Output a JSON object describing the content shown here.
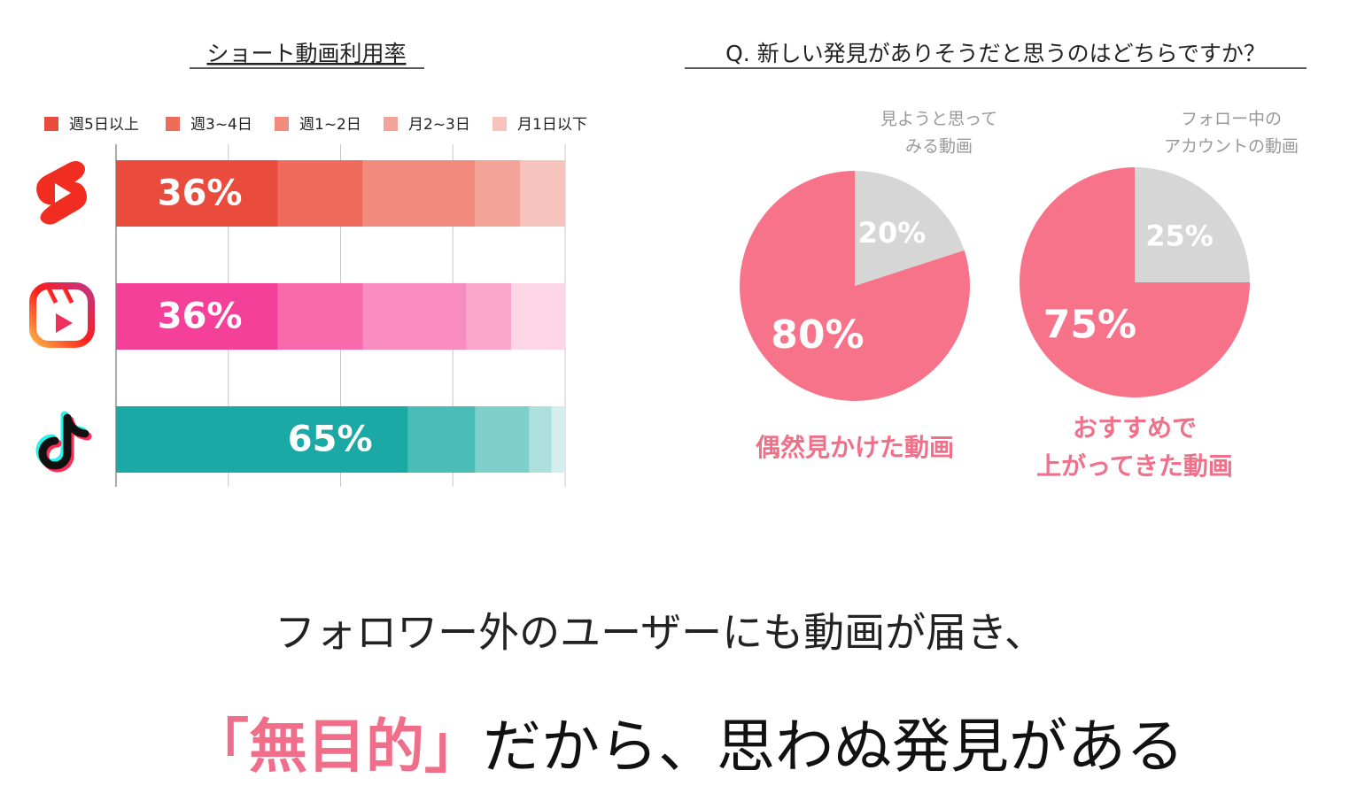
{
  "chart_data": [
    {
      "type": "stacked-hbar",
      "title": "ショート動画利用率",
      "categories": [
        null,
        null,
        null
      ],
      "xlim": [
        0,
        100
      ],
      "xticks": [
        0,
        25,
        50,
        75,
        100
      ],
      "grid": true,
      "legend": "top",
      "series": [
        {
          "name": "週5日以上",
          "color": "#e94b3c",
          "colors": [
            "#e94b3c",
            "#f5409a",
            "#1aa9a4"
          ],
          "values": [
            36,
            36,
            65
          ],
          "value_labels": [
            "36%",
            "36%",
            "65%"
          ]
        },
        {
          "name": "週3~4日",
          "color": "#ee6a5b",
          "colors": [
            "#ee6a5b",
            "#f86aa9",
            "#4bbdb8"
          ],
          "values": [
            19,
            19,
            15
          ]
        },
        {
          "name": "週1~2日",
          "color": "#f28a7d",
          "colors": [
            "#f28a7d",
            "#f98dbf",
            "#7fd0cd"
          ],
          "values": [
            25,
            23,
            12
          ]
        },
        {
          "name": "月2~3日",
          "color": "#f4a399",
          "colors": [
            "#f4a399",
            "#fba8cc",
            "#addfdd"
          ],
          "values": [
            10,
            10,
            5
          ]
        },
        {
          "name": "月1日以下",
          "color": "#f7c4bd",
          "colors": [
            "#f7c4bd",
            "#fdd6e6",
            "#d3eeed"
          ],
          "values": [
            10,
            12,
            3
          ]
        }
      ]
    },
    {
      "type": "pie",
      "title": "Q. 新しい発見がありそうだと思うのはどちらですか？",
      "categories": [
        [
          "見ようと思って",
          "みる動画"
        ],
        [
          "偶然見かけた動画"
        ]
      ],
      "values": [
        20,
        80
      ],
      "value_labels": [
        "20%",
        "80%"
      ],
      "colors": [
        "#d6d6d6",
        "#f7738a"
      ]
    },
    {
      "type": "pie",
      "categories": [
        [
          "フォロー中の",
          "アカウントの動画"
        ],
        [
          "おすすめで",
          "上がってきた動画"
        ]
      ],
      "values": [
        25,
        75
      ],
      "value_labels": [
        "25%",
        "75%"
      ],
      "colors": [
        "#d6d6d6",
        "#f7738a"
      ]
    }
  ],
  "footer": {
    "line1": "フォロワー外のユーザーにも動画が届き、",
    "highlight": "「無目的」",
    "rest": "だから、思わぬ発見がある"
  }
}
